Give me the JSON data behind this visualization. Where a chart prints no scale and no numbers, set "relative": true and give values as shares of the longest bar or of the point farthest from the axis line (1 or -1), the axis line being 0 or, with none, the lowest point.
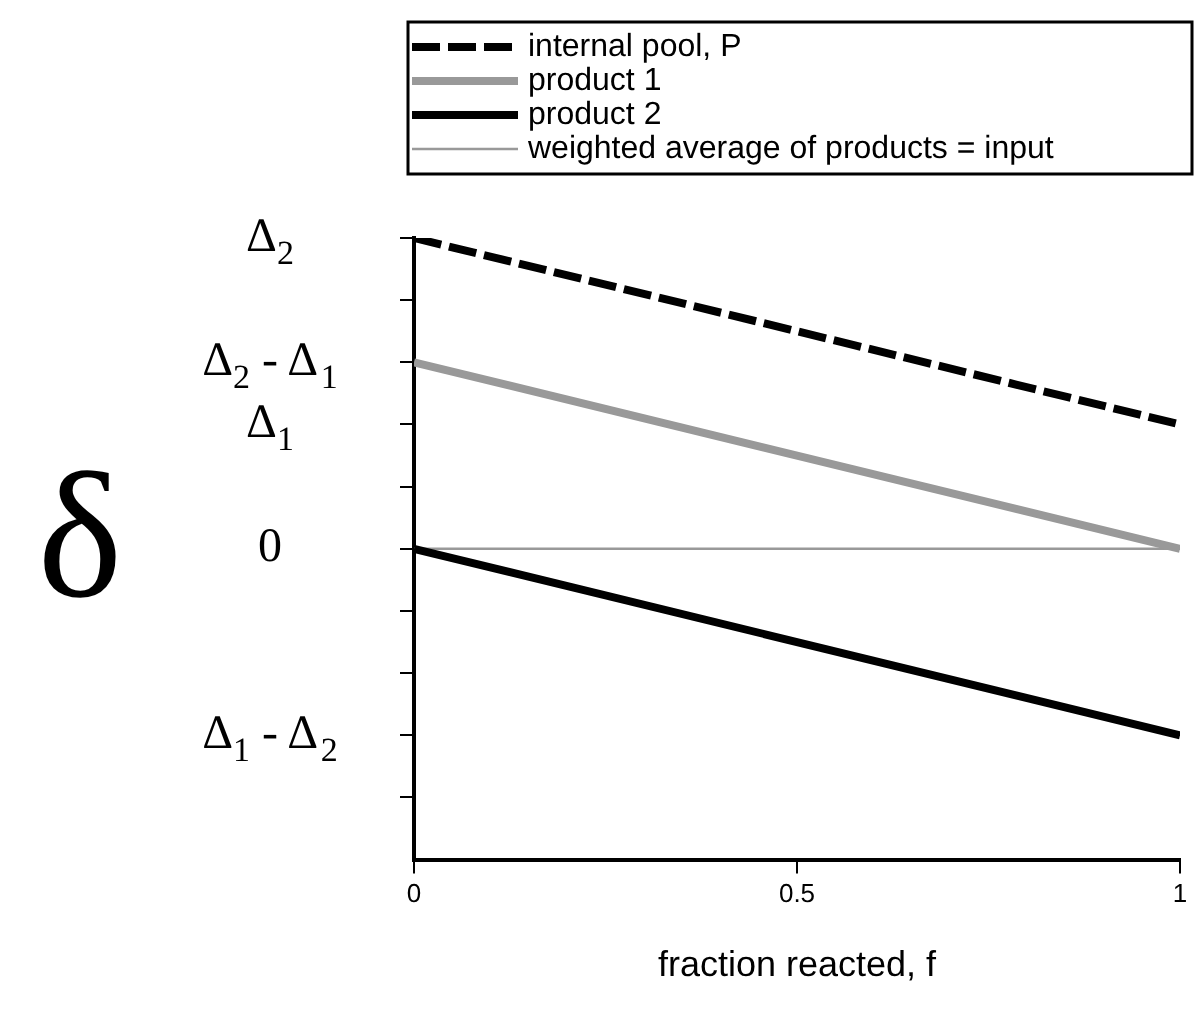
{
  "chart_data": {
    "type": "line",
    "xlabel": "fraction reacted, f",
    "ylabel": "δ",
    "x": [
      0,
      1
    ],
    "series": [
      {
        "name": "internal pool, P",
        "color": "#000000",
        "values": [
          1,
          0.4
        ],
        "line_style": "dashed"
      },
      {
        "name": "product 1",
        "color": "#999999",
        "values": [
          0.6,
          0
        ]
      },
      {
        "name": "product 2",
        "color": "#000000",
        "values": [
          0,
          -0.6
        ]
      },
      {
        "name": "weighted average of products = input",
        "color": "#999999",
        "values": [
          0,
          0
        ]
      }
    ],
    "relative": true,
    "xlim": [
      0,
      1
    ],
    "xticks": [
      0,
      0.5,
      1
    ],
    "annotations": [
      "Δ$_{2}$",
      "Δ$_{2}$ - Δ$_{1}$",
      "Δ$_{1}$",
      "0",
      "Δ$_{1}$ - Δ$_{2}$"
    ],
    "grid": false,
    "legend": "top",
    "marker": "none"
  }
}
